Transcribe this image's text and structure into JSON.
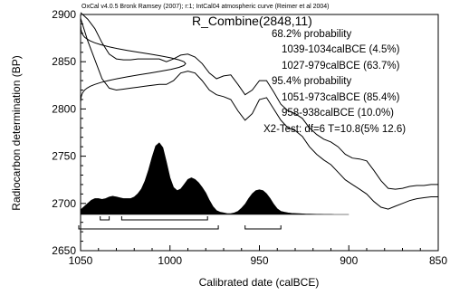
{
  "header": "OxCal v4.0.5 Bronk Ramsey (2007); r:1; IntCal04 atmospheric curve (Reimer et al 2004)",
  "colors": {
    "ink": "#000000",
    "background": "#ffffff"
  },
  "chart_data": {
    "type": "area",
    "title": "R_Combine(2848,11)",
    "xlabel": "Calibrated date (calBCE)",
    "ylabel": "Radiocarbon determination (BP)",
    "xlim": [
      1050,
      850
    ],
    "xaxis_reversed": true,
    "ylim": [
      2650,
      2900
    ],
    "xticks": [
      1050,
      1000,
      950,
      900,
      850
    ],
    "yticks": [
      2650,
      2700,
      2750,
      2800,
      2850,
      2900
    ],
    "grid": false,
    "legend": "none",
    "annotations": [
      "68.2% probability",
      "1039-1034calBCE (4.5%)",
      "1027-979calBCE (63.7%)",
      "95.4% probability",
      "1051-973calBCE (85.4%)",
      "958-938calBCE (10.0%)",
      "X2-Test: df=6 T=10.8(5% 12.6)"
    ],
    "ranges": {
      "p68": [
        [
          1039,
          1034
        ],
        [
          1027,
          979
        ]
      ],
      "p95": [
        [
          1051,
          973
        ],
        [
          958,
          938
        ]
      ]
    },
    "calibration_curve": {
      "x": [
        1050,
        1046,
        1042,
        1038,
        1034,
        1030,
        1026,
        1022,
        1018,
        1014,
        1010,
        1006,
        1002,
        998,
        994,
        990,
        986,
        982,
        978,
        974,
        970,
        966,
        962,
        958,
        954,
        950,
        946,
        942,
        938,
        934,
        930,
        926,
        922,
        918,
        914,
        910,
        906,
        902,
        898,
        894,
        890,
        886,
        882,
        878,
        874,
        870,
        866,
        862,
        858,
        854,
        850
      ],
      "upper": [
        2902,
        2895,
        2885,
        2870,
        2858,
        2853,
        2852,
        2852,
        2853,
        2853,
        2853,
        2853,
        2850,
        2853,
        2857,
        2858,
        2855,
        2848,
        2838,
        2832,
        2835,
        2836,
        2826,
        2815,
        2820,
        2830,
        2830,
        2818,
        2805,
        2798,
        2795,
        2790,
        2780,
        2773,
        2768,
        2765,
        2760,
        2752,
        2748,
        2747,
        2745,
        2735,
        2724,
        2716,
        2715,
        2716,
        2718,
        2719,
        2719,
        2720,
        2720
      ],
      "lower": [
        2896,
        2872,
        2852,
        2832,
        2822,
        2820,
        2821,
        2822,
        2823,
        2824,
        2825,
        2826,
        2826,
        2830,
        2838,
        2840,
        2838,
        2830,
        2820,
        2815,
        2813,
        2810,
        2798,
        2788,
        2795,
        2810,
        2812,
        2800,
        2788,
        2780,
        2777,
        2771,
        2760,
        2752,
        2746,
        2741,
        2733,
        2725,
        2720,
        2715,
        2710,
        2702,
        2696,
        2694,
        2697,
        2700,
        2703,
        2705,
        2706,
        2707,
        2707
      ]
    },
    "probability_distribution": {
      "x": [
        1050,
        1048,
        1046,
        1044,
        1042,
        1040,
        1038,
        1036,
        1034,
        1032,
        1030,
        1028,
        1026,
        1024,
        1022,
        1020,
        1018,
        1016,
        1014,
        1012,
        1010,
        1008,
        1006,
        1004,
        1002,
        1000,
        998,
        996,
        994,
        992,
        990,
        988,
        986,
        984,
        982,
        980,
        978,
        976,
        974,
        972,
        970,
        968,
        966,
        964,
        962,
        960,
        958,
        956,
        954,
        952,
        950,
        948,
        946,
        944,
        942,
        940,
        938,
        936,
        934,
        932,
        930,
        928,
        926,
        924,
        922,
        920,
        918,
        916,
        914,
        912,
        910,
        908,
        906,
        904,
        902,
        900
      ],
      "density": [
        0.06,
        0.1,
        0.14,
        0.18,
        0.2,
        0.2,
        0.19,
        0.2,
        0.22,
        0.23,
        0.22,
        0.21,
        0.2,
        0.2,
        0.2,
        0.22,
        0.26,
        0.32,
        0.42,
        0.56,
        0.72,
        0.86,
        0.9,
        0.84,
        0.66,
        0.46,
        0.34,
        0.3,
        0.32,
        0.38,
        0.44,
        0.46,
        0.44,
        0.4,
        0.34,
        0.27,
        0.18,
        0.1,
        0.05,
        0.03,
        0.02,
        0.01,
        0.01,
        0.02,
        0.04,
        0.08,
        0.13,
        0.2,
        0.26,
        0.3,
        0.31,
        0.3,
        0.26,
        0.2,
        0.13,
        0.07,
        0.04,
        0.03,
        0.02,
        0.015,
        0.012,
        0.01,
        0.008,
        0.006,
        0.004,
        0.003,
        0.002,
        0.002,
        0.001,
        0.001,
        0.001,
        0.0005,
        0.0003,
        0.0002,
        0.0001,
        0
      ]
    }
  }
}
